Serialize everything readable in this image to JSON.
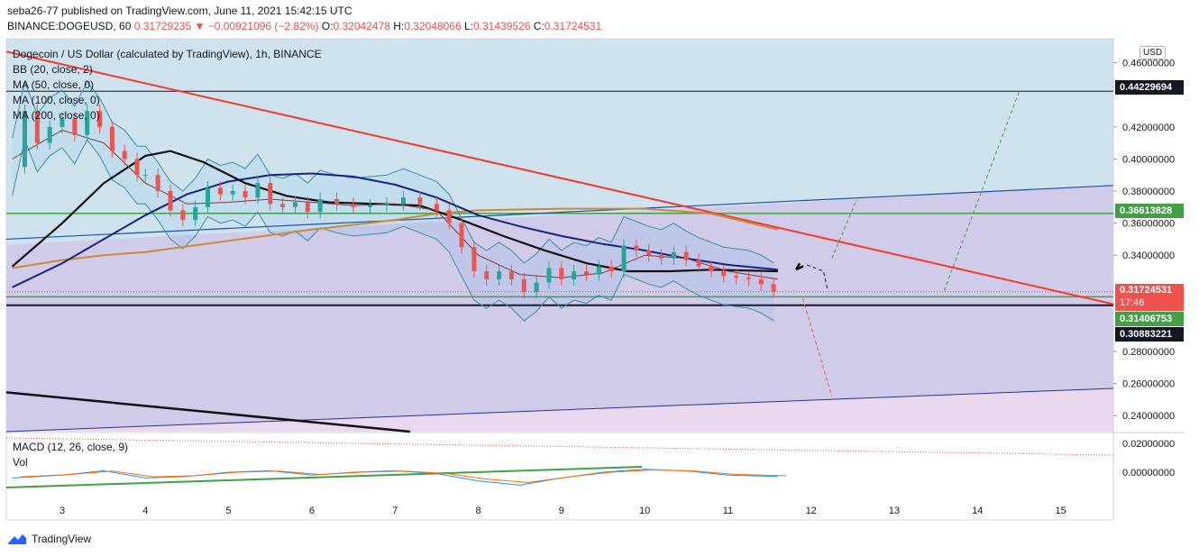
{
  "header": {
    "publish_text": "seba26-77 published on TradingView.com, June 11, 2021 15:42:15 UTC",
    "symbol": "BINANCE:DOGEUSD, 60",
    "last": "0.31729235",
    "change": "▼ −0.00921096 (−2.82%)",
    "o_label": "O:",
    "o_val": "0.32042478",
    "h_label": "H:",
    "h_val": "0.32048066",
    "l_label": "L:",
    "l_val": "0.31439526",
    "c_label": "C:",
    "c_val": "0.31724531"
  },
  "legend": {
    "title": "Dogecoin / US Dollar (calculated by TradingView), 1h, BINANCE",
    "bb": "BB (20, close, 2)",
    "ma50": "MA (50, close, 0)",
    "ma100": "MA (100, close, 0)",
    "ma200": "MA (200, close, 0)",
    "macd": "MACD (12, 26, close, 9)",
    "vol": "Vol"
  },
  "tags": {
    "t1": "0.44229694",
    "t2": "0.36613828",
    "t3": "0.31724531",
    "t3_sub": "17:46",
    "t4": "0.31406753",
    "t5": "0.30883221"
  },
  "usd": "USD",
  "brand": "TradingView",
  "colors": {
    "bull": "#26a69a",
    "bear": "#ef5350",
    "ma50": "#7b3b3b",
    "ma100": "#111111",
    "ma200": "#1a237e",
    "ma_orange": "#c98a3a",
    "bb": "#3a8fa0",
    "trend_red": "#f23b2e",
    "green_line": "#43a047",
    "blue_line": "#1e4fa0",
    "zone_blue": "#cfe3ee",
    "zone_purple": "#cfcbe8",
    "zone_pink": "#ead8ee"
  },
  "chart_data": {
    "type": "candlestick",
    "title": "Dogecoin / US Dollar (calculated by TradingView), 1h, BINANCE",
    "x_ticks": [
      "3",
      "4",
      "5",
      "6",
      "7",
      "8",
      "9",
      "10",
      "11",
      "12",
      "13",
      "14",
      "15"
    ],
    "y_ticks": [
      "0.46000000",
      "0.42000000",
      "0.40000000",
      "0.38000000",
      "0.36000000",
      "0.34000000",
      "0.28000000",
      "0.26000000",
      "0.24000000"
    ],
    "ylim": [
      0.23,
      0.475
    ],
    "macd_ticks": [
      "0.02000000",
      "0.00000000"
    ],
    "price_levels": [
      0.44229694,
      0.36613828,
      0.31724531,
      0.31406753,
      0.30883221
    ],
    "close_path": [
      [
        2.4,
        0.395
      ],
      [
        2.55,
        0.43
      ],
      [
        2.7,
        0.41
      ],
      [
        2.85,
        0.42
      ],
      [
        3.0,
        0.425
      ],
      [
        3.15,
        0.415
      ],
      [
        3.3,
        0.43
      ],
      [
        3.45,
        0.42
      ],
      [
        3.6,
        0.405
      ],
      [
        3.75,
        0.4
      ],
      [
        3.9,
        0.39
      ],
      [
        4.0,
        0.39
      ],
      [
        4.15,
        0.38
      ],
      [
        4.3,
        0.368
      ],
      [
        4.45,
        0.362
      ],
      [
        4.6,
        0.37
      ],
      [
        4.75,
        0.382
      ],
      [
        4.9,
        0.378
      ],
      [
        5.05,
        0.38
      ],
      [
        5.2,
        0.376
      ],
      [
        5.35,
        0.385
      ],
      [
        5.5,
        0.372
      ],
      [
        5.65,
        0.37
      ],
      [
        5.8,
        0.373
      ],
      [
        5.95,
        0.367
      ],
      [
        6.1,
        0.375
      ],
      [
        6.3,
        0.372
      ],
      [
        6.5,
        0.37
      ],
      [
        6.7,
        0.371
      ],
      [
        6.9,
        0.372
      ],
      [
        7.1,
        0.376
      ],
      [
        7.3,
        0.372
      ],
      [
        7.5,
        0.368
      ],
      [
        7.65,
        0.36
      ],
      [
        7.8,
        0.345
      ],
      [
        7.95,
        0.33
      ],
      [
        8.1,
        0.325
      ],
      [
        8.25,
        0.33
      ],
      [
        8.4,
        0.325
      ],
      [
        8.55,
        0.317
      ],
      [
        8.7,
        0.323
      ],
      [
        8.85,
        0.332
      ],
      [
        9.0,
        0.325
      ],
      [
        9.15,
        0.33
      ],
      [
        9.3,
        0.328
      ],
      [
        9.45,
        0.333
      ],
      [
        9.6,
        0.33
      ],
      [
        9.75,
        0.346
      ],
      [
        9.9,
        0.343
      ],
      [
        10.05,
        0.34
      ],
      [
        10.2,
        0.338
      ],
      [
        10.35,
        0.342
      ],
      [
        10.5,
        0.337
      ],
      [
        10.65,
        0.333
      ],
      [
        10.8,
        0.33
      ],
      [
        10.95,
        0.327
      ],
      [
        11.1,
        0.326
      ],
      [
        11.25,
        0.325
      ],
      [
        11.4,
        0.322
      ],
      [
        11.55,
        0.3172
      ]
    ],
    "ma50": [
      [
        2.4,
        0.4
      ],
      [
        3.0,
        0.418
      ],
      [
        3.5,
        0.41
      ],
      [
        4.0,
        0.385
      ],
      [
        4.5,
        0.372
      ],
      [
        5.0,
        0.373
      ],
      [
        5.5,
        0.375
      ],
      [
        6.0,
        0.373
      ],
      [
        6.5,
        0.371
      ],
      [
        7.0,
        0.372
      ],
      [
        7.5,
        0.368
      ],
      [
        8.0,
        0.34
      ],
      [
        8.5,
        0.328
      ],
      [
        9.0,
        0.326
      ],
      [
        9.5,
        0.329
      ],
      [
        10.0,
        0.34
      ],
      [
        10.5,
        0.338
      ],
      [
        11.0,
        0.33
      ],
      [
        11.6,
        0.325
      ]
    ],
    "ma100": [
      [
        2.4,
        0.333
      ],
      [
        3.0,
        0.36
      ],
      [
        3.5,
        0.385
      ],
      [
        4.0,
        0.402
      ],
      [
        4.3,
        0.405
      ],
      [
        4.7,
        0.398
      ],
      [
        5.2,
        0.385
      ],
      [
        5.7,
        0.377
      ],
      [
        6.2,
        0.373
      ],
      [
        6.8,
        0.372
      ],
      [
        7.3,
        0.371
      ],
      [
        7.8,
        0.362
      ],
      [
        8.3,
        0.352
      ],
      [
        8.8,
        0.343
      ],
      [
        9.3,
        0.335
      ],
      [
        9.8,
        0.33
      ],
      [
        10.3,
        0.33
      ],
      [
        10.8,
        0.331
      ],
      [
        11.6,
        0.33
      ]
    ],
    "ma200": [
      [
        2.4,
        0.32
      ],
      [
        3.0,
        0.335
      ],
      [
        3.5,
        0.35
      ],
      [
        4.0,
        0.365
      ],
      [
        4.5,
        0.378
      ],
      [
        5.0,
        0.386
      ],
      [
        5.5,
        0.39
      ],
      [
        6.0,
        0.391
      ],
      [
        6.5,
        0.389
      ],
      [
        7.0,
        0.384
      ],
      [
        7.5,
        0.376
      ],
      [
        8.0,
        0.365
      ],
      [
        8.5,
        0.358
      ],
      [
        9.0,
        0.352
      ],
      [
        9.5,
        0.347
      ],
      [
        10.0,
        0.343
      ],
      [
        10.5,
        0.338
      ],
      [
        11.0,
        0.334
      ],
      [
        11.6,
        0.331
      ]
    ],
    "ma_orange": [
      [
        2.4,
        0.332
      ],
      [
        3.0,
        0.337
      ],
      [
        3.5,
        0.34
      ],
      [
        4.0,
        0.342
      ],
      [
        5.0,
        0.349
      ],
      [
        6.0,
        0.356
      ],
      [
        7.0,
        0.362
      ],
      [
        7.5,
        0.366
      ],
      [
        8.0,
        0.368
      ],
      [
        9.0,
        0.369
      ],
      [
        10.0,
        0.369
      ],
      [
        10.8,
        0.366
      ],
      [
        11.6,
        0.356
      ]
    ],
    "annotations": [
      "descending red trendline",
      "green horizontal resistance 0.36613828",
      "black support 0.30883221",
      "dashed projections"
    ]
  }
}
